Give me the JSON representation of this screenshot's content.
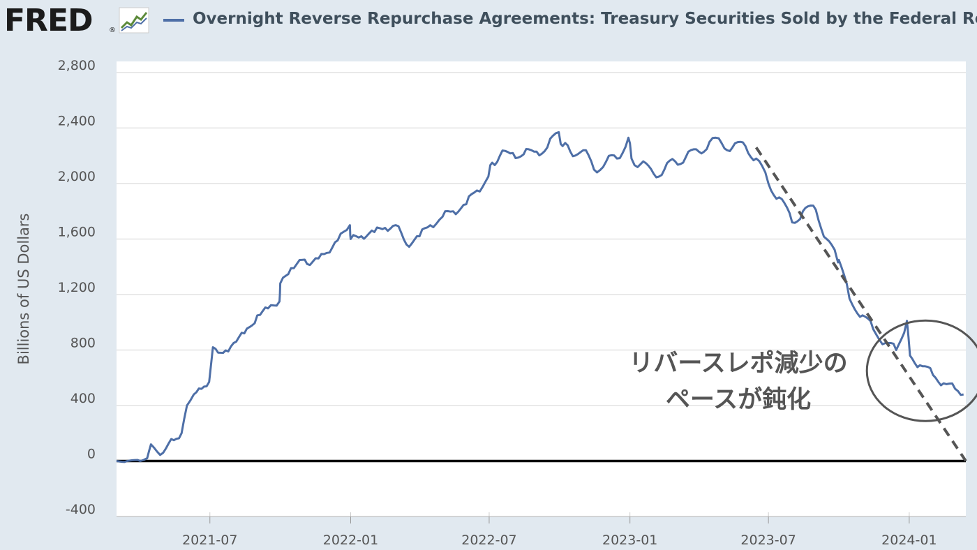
{
  "header": {
    "logo_text": "FRED",
    "logo_reg": "®",
    "series_color": "#4e6fa7",
    "title": "Overnight Reverse Repurchase Agreements: Treasury Securities Sold by the Federal Reserve in"
  },
  "annotation": {
    "line1": "リバースレポ減少の",
    "line2": "ペースが鈍化"
  },
  "chart_data": {
    "type": "line",
    "title": "Overnight Reverse Repurchase Agreements: Treasury Securities Sold by the Federal Reserve in",
    "ylabel": "Billions of US Dollars",
    "xlabel": "",
    "ylim": [
      -400,
      2800
    ],
    "yticks": [
      -400,
      0,
      400,
      800,
      1200,
      1600,
      2000,
      2400,
      2800
    ],
    "ytick_labels": [
      "-400",
      "0",
      "400",
      "800",
      "1,200",
      "1,600",
      "2,000",
      "2,400",
      "2,800"
    ],
    "xlim": [
      "2021-03-01",
      "2024-03-15"
    ],
    "xticks": [
      "2021-07-01",
      "2022-01-01",
      "2022-07-01",
      "2023-01-01",
      "2023-07-01",
      "2024-01-01"
    ],
    "xtick_labels": [
      "2021-07",
      "2022-01",
      "2022-07",
      "2023-01",
      "2023-07",
      "2024-01"
    ],
    "grid": true,
    "series": [
      {
        "color": "#4e6fa7",
        "x": [
          "2021-03-01",
          "2021-03-15",
          "2021-04-01",
          "2021-04-10",
          "2021-04-15",
          "2021-05-01",
          "2021-05-15",
          "2021-05-25",
          "2021-06-01",
          "2021-06-10",
          "2021-06-20",
          "2021-06-30",
          "2021-07-05",
          "2021-07-15",
          "2021-07-25",
          "2021-08-01",
          "2021-08-15",
          "2021-09-01",
          "2021-09-15",
          "2021-09-30",
          "2021-10-01",
          "2021-10-15",
          "2021-10-30",
          "2021-11-05",
          "2021-11-20",
          "2021-12-01",
          "2021-12-15",
          "2021-12-31",
          "2022-01-01",
          "2022-01-15",
          "2022-02-01",
          "2022-02-15",
          "2022-03-01",
          "2022-03-15",
          "2022-04-01",
          "2022-04-15",
          "2022-05-01",
          "2022-05-15",
          "2022-06-01",
          "2022-06-15",
          "2022-06-30",
          "2022-07-05",
          "2022-07-15",
          "2022-08-01",
          "2022-08-15",
          "2022-09-01",
          "2022-09-15",
          "2022-09-30",
          "2022-10-05",
          "2022-10-15",
          "2022-11-01",
          "2022-11-15",
          "2022-12-01",
          "2022-12-15",
          "2022-12-30",
          "2023-01-03",
          "2023-01-15",
          "2023-02-01",
          "2023-02-15",
          "2023-03-01",
          "2023-03-15",
          "2023-04-01",
          "2023-04-15",
          "2023-05-01",
          "2023-05-15",
          "2023-06-01",
          "2023-06-15",
          "2023-07-01",
          "2023-07-15",
          "2023-08-01",
          "2023-08-15",
          "2023-09-01",
          "2023-09-15",
          "2023-09-29",
          "2023-10-01",
          "2023-10-15",
          "2023-11-01",
          "2023-11-15",
          "2023-12-01",
          "2023-12-15",
          "2023-12-29",
          "2024-01-02",
          "2024-01-15",
          "2024-02-01",
          "2024-02-15",
          "2024-03-01",
          "2024-03-12"
        ],
        "values": [
          0,
          0,
          0,
          20,
          120,
          60,
          150,
          200,
          400,
          480,
          520,
          570,
          820,
          780,
          790,
          850,
          920,
          1050,
          1100,
          1150,
          1280,
          1390,
          1450,
          1420,
          1460,
          1500,
          1590,
          1700,
          1600,
          1620,
          1650,
          1680,
          1700,
          1560,
          1620,
          1700,
          1760,
          1800,
          1850,
          1950,
          2050,
          2150,
          2200,
          2220,
          2210,
          2230,
          2260,
          2370,
          2270,
          2230,
          2240,
          2100,
          2160,
          2180,
          2330,
          2180,
          2140,
          2070,
          2100,
          2160,
          2190,
          2230,
          2300,
          2290,
          2260,
          2270,
          2180,
          2000,
          1900,
          1720,
          1800,
          1810,
          1600,
          1450,
          1450,
          1170,
          1050,
          950,
          850,
          800,
          1010,
          760,
          690,
          620,
          560,
          520,
          480
        ]
      }
    ],
    "trendline": {
      "style": "dashed",
      "x": [
        "2023-06-15",
        "2024-03-15"
      ],
      "values": [
        2260,
        0
      ]
    },
    "circle_highlight": {
      "center_x": "2024-01-15",
      "center_y": 650,
      "label": "リバースレポ減少のペースが鈍化"
    }
  }
}
